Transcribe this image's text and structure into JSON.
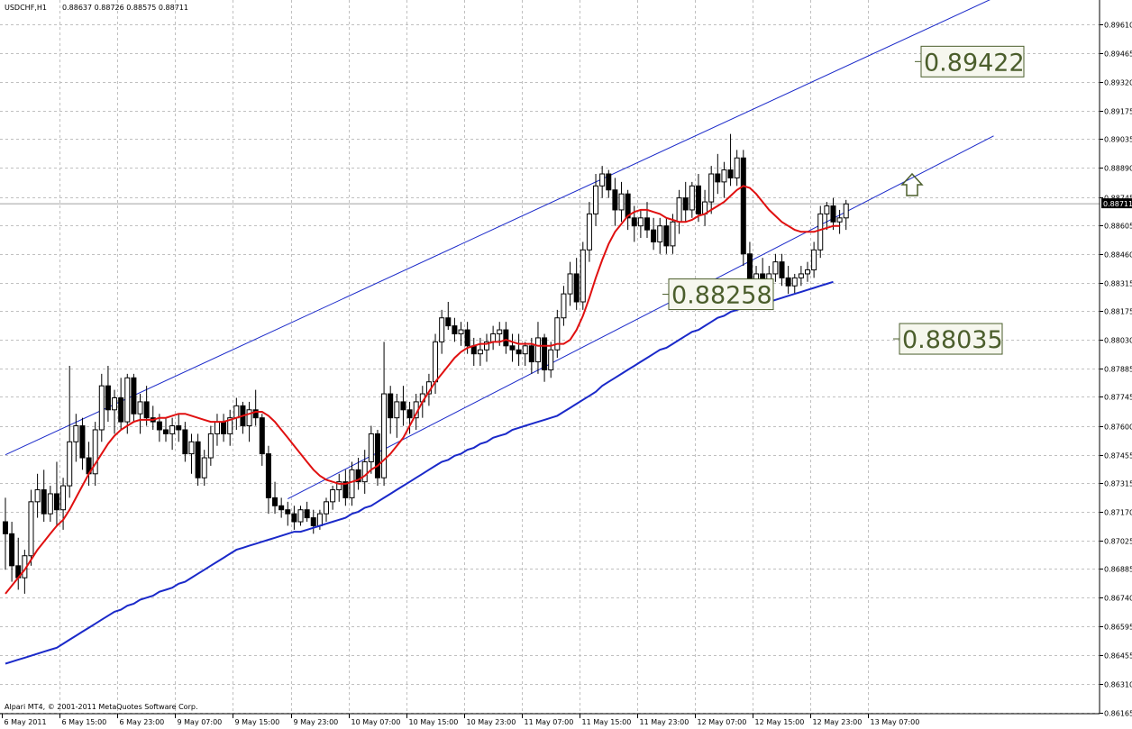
{
  "chart_data": {
    "type": "candlestick",
    "header": {
      "symbol": "USDCHF,H1",
      "ohlc": "0.88637 0.88726 0.88575 0.88711"
    },
    "footer": "Alpari MT4, © 2001-2011 MetaQuotes Software Corp.",
    "current_price": "0.88711",
    "ylim": [
      0.8616,
      0.8973
    ],
    "y_ticks": [
      "0.89610",
      "0.89465",
      "0.89320",
      "0.89175",
      "0.89035",
      "0.88890",
      "0.88745",
      "0.88605",
      "0.88460",
      "0.88315",
      "0.88175",
      "0.88030",
      "0.87885",
      "0.87745",
      "0.87600",
      "0.87455",
      "0.87315",
      "0.87170",
      "0.87025",
      "0.86885",
      "0.86740",
      "0.86595",
      "0.86455",
      "0.86310",
      "0.86165"
    ],
    "x_ticks": [
      "6 May 2011",
      "6 May 15:00",
      "6 May 23:00",
      "9 May 07:00",
      "9 May 15:00",
      "9 May 23:00",
      "10 May 07:00",
      "10 May 15:00",
      "10 May 23:00",
      "11 May 07:00",
      "11 May 15:00",
      "11 May 23:00",
      "12 May 07:00",
      "12 May 15:00",
      "12 May 23:00",
      "13 May 07:00"
    ],
    "candles": [
      {
        "o": 0.8712,
        "h": 0.8724,
        "l": 0.8688,
        "c": 0.8706
      },
      {
        "o": 0.8706,
        "h": 0.8712,
        "l": 0.8682,
        "c": 0.869
      },
      {
        "o": 0.869,
        "h": 0.8704,
        "l": 0.8678,
        "c": 0.8684
      },
      {
        "o": 0.8684,
        "h": 0.8698,
        "l": 0.8676,
        "c": 0.8695
      },
      {
        "o": 0.8695,
        "h": 0.8728,
        "l": 0.869,
        "c": 0.8722
      },
      {
        "o": 0.8722,
        "h": 0.8736,
        "l": 0.8714,
        "c": 0.8728
      },
      {
        "o": 0.8728,
        "h": 0.8738,
        "l": 0.8712,
        "c": 0.8716
      },
      {
        "o": 0.8716,
        "h": 0.873,
        "l": 0.8712,
        "c": 0.8726
      },
      {
        "o": 0.8726,
        "h": 0.8742,
        "l": 0.871,
        "c": 0.8718
      },
      {
        "o": 0.8718,
        "h": 0.8734,
        "l": 0.8708,
        "c": 0.873
      },
      {
        "o": 0.873,
        "h": 0.879,
        "l": 0.8724,
        "c": 0.8752
      },
      {
        "o": 0.8752,
        "h": 0.8766,
        "l": 0.8742,
        "c": 0.876
      },
      {
        "o": 0.876,
        "h": 0.8764,
        "l": 0.8738,
        "c": 0.8744
      },
      {
        "o": 0.8744,
        "h": 0.8752,
        "l": 0.873,
        "c": 0.8736
      },
      {
        "o": 0.8736,
        "h": 0.8762,
        "l": 0.873,
        "c": 0.8758
      },
      {
        "o": 0.8758,
        "h": 0.8786,
        "l": 0.8752,
        "c": 0.878
      },
      {
        "o": 0.878,
        "h": 0.879,
        "l": 0.8762,
        "c": 0.8768
      },
      {
        "o": 0.8768,
        "h": 0.8778,
        "l": 0.8756,
        "c": 0.8774
      },
      {
        "o": 0.8774,
        "h": 0.8784,
        "l": 0.8758,
        "c": 0.8762
      },
      {
        "o": 0.8762,
        "h": 0.8786,
        "l": 0.8756,
        "c": 0.8784
      },
      {
        "o": 0.8784,
        "h": 0.8786,
        "l": 0.8762,
        "c": 0.8766
      },
      {
        "o": 0.8766,
        "h": 0.8776,
        "l": 0.8756,
        "c": 0.8772
      },
      {
        "o": 0.8772,
        "h": 0.878,
        "l": 0.876,
        "c": 0.8764
      },
      {
        "o": 0.8764,
        "h": 0.877,
        "l": 0.8758,
        "c": 0.8762
      },
      {
        "o": 0.8762,
        "h": 0.8766,
        "l": 0.8752,
        "c": 0.8758
      },
      {
        "o": 0.8758,
        "h": 0.8764,
        "l": 0.8752,
        "c": 0.8756
      },
      {
        "o": 0.8756,
        "h": 0.8764,
        "l": 0.8748,
        "c": 0.876
      },
      {
        "o": 0.876,
        "h": 0.8766,
        "l": 0.8752,
        "c": 0.8758
      },
      {
        "o": 0.8758,
        "h": 0.8762,
        "l": 0.8742,
        "c": 0.8746
      },
      {
        "o": 0.8746,
        "h": 0.8756,
        "l": 0.8736,
        "c": 0.8752
      },
      {
        "o": 0.8752,
        "h": 0.8756,
        "l": 0.873,
        "c": 0.8734
      },
      {
        "o": 0.8734,
        "h": 0.8748,
        "l": 0.873,
        "c": 0.8744
      },
      {
        "o": 0.8744,
        "h": 0.876,
        "l": 0.874,
        "c": 0.8756
      },
      {
        "o": 0.8756,
        "h": 0.8766,
        "l": 0.875,
        "c": 0.8762
      },
      {
        "o": 0.8762,
        "h": 0.8766,
        "l": 0.8752,
        "c": 0.8756
      },
      {
        "o": 0.8756,
        "h": 0.8768,
        "l": 0.875,
        "c": 0.8764
      },
      {
        "o": 0.8764,
        "h": 0.8774,
        "l": 0.8758,
        "c": 0.877
      },
      {
        "o": 0.877,
        "h": 0.8772,
        "l": 0.8756,
        "c": 0.876
      },
      {
        "o": 0.876,
        "h": 0.8772,
        "l": 0.8752,
        "c": 0.8768
      },
      {
        "o": 0.8768,
        "h": 0.8778,
        "l": 0.876,
        "c": 0.8764
      },
      {
        "o": 0.8764,
        "h": 0.8766,
        "l": 0.874,
        "c": 0.8746
      },
      {
        "o": 0.8746,
        "h": 0.875,
        "l": 0.8716,
        "c": 0.8724
      },
      {
        "o": 0.8724,
        "h": 0.8732,
        "l": 0.8716,
        "c": 0.872
      },
      {
        "o": 0.872,
        "h": 0.8724,
        "l": 0.8714,
        "c": 0.8718
      },
      {
        "o": 0.8718,
        "h": 0.8722,
        "l": 0.871,
        "c": 0.8716
      },
      {
        "o": 0.8716,
        "h": 0.872,
        "l": 0.8708,
        "c": 0.8712
      },
      {
        "o": 0.8712,
        "h": 0.872,
        "l": 0.871,
        "c": 0.8718
      },
      {
        "o": 0.8718,
        "h": 0.8722,
        "l": 0.8712,
        "c": 0.8714
      },
      {
        "o": 0.8714,
        "h": 0.8718,
        "l": 0.8706,
        "c": 0.871
      },
      {
        "o": 0.871,
        "h": 0.8718,
        "l": 0.8708,
        "c": 0.8716
      },
      {
        "o": 0.8716,
        "h": 0.8724,
        "l": 0.8712,
        "c": 0.8722
      },
      {
        "o": 0.8722,
        "h": 0.873,
        "l": 0.8718,
        "c": 0.8728
      },
      {
        "o": 0.8728,
        "h": 0.8736,
        "l": 0.8722,
        "c": 0.8732
      },
      {
        "o": 0.8732,
        "h": 0.8738,
        "l": 0.872,
        "c": 0.8724
      },
      {
        "o": 0.8724,
        "h": 0.8742,
        "l": 0.872,
        "c": 0.8738
      },
      {
        "o": 0.8738,
        "h": 0.8744,
        "l": 0.8728,
        "c": 0.8732
      },
      {
        "o": 0.8732,
        "h": 0.8748,
        "l": 0.8726,
        "c": 0.8742
      },
      {
        "o": 0.8742,
        "h": 0.876,
        "l": 0.8736,
        "c": 0.8756
      },
      {
        "o": 0.8756,
        "h": 0.8758,
        "l": 0.873,
        "c": 0.8734
      },
      {
        "o": 0.8734,
        "h": 0.8802,
        "l": 0.873,
        "c": 0.8776
      },
      {
        "o": 0.8776,
        "h": 0.878,
        "l": 0.8756,
        "c": 0.8764
      },
      {
        "o": 0.8764,
        "h": 0.8776,
        "l": 0.8754,
        "c": 0.8772
      },
      {
        "o": 0.8772,
        "h": 0.878,
        "l": 0.876,
        "c": 0.8768
      },
      {
        "o": 0.8768,
        "h": 0.8772,
        "l": 0.8756,
        "c": 0.8764
      },
      {
        "o": 0.8764,
        "h": 0.8776,
        "l": 0.8758,
        "c": 0.8772
      },
      {
        "o": 0.8772,
        "h": 0.878,
        "l": 0.8764,
        "c": 0.8776
      },
      {
        "o": 0.8776,
        "h": 0.8786,
        "l": 0.877,
        "c": 0.8782
      },
      {
        "o": 0.8782,
        "h": 0.8806,
        "l": 0.8776,
        "c": 0.8802
      },
      {
        "o": 0.8802,
        "h": 0.8818,
        "l": 0.8796,
        "c": 0.8814
      },
      {
        "o": 0.8814,
        "h": 0.8822,
        "l": 0.8808,
        "c": 0.881
      },
      {
        "o": 0.881,
        "h": 0.8814,
        "l": 0.8802,
        "c": 0.8806
      },
      {
        "o": 0.8806,
        "h": 0.8812,
        "l": 0.88,
        "c": 0.8808
      },
      {
        "o": 0.8808,
        "h": 0.8812,
        "l": 0.8796,
        "c": 0.88
      },
      {
        "o": 0.88,
        "h": 0.8804,
        "l": 0.879,
        "c": 0.8796
      },
      {
        "o": 0.8796,
        "h": 0.8804,
        "l": 0.879,
        "c": 0.8798
      },
      {
        "o": 0.8798,
        "h": 0.8806,
        "l": 0.8792,
        "c": 0.8802
      },
      {
        "o": 0.8802,
        "h": 0.881,
        "l": 0.8798,
        "c": 0.8806
      },
      {
        "o": 0.8806,
        "h": 0.8812,
        "l": 0.88,
        "c": 0.8808
      },
      {
        "o": 0.8808,
        "h": 0.8812,
        "l": 0.8796,
        "c": 0.88
      },
      {
        "o": 0.88,
        "h": 0.8806,
        "l": 0.8792,
        "c": 0.8798
      },
      {
        "o": 0.8798,
        "h": 0.8806,
        "l": 0.879,
        "c": 0.8796
      },
      {
        "o": 0.8796,
        "h": 0.8802,
        "l": 0.879,
        "c": 0.88
      },
      {
        "o": 0.88,
        "h": 0.8804,
        "l": 0.8786,
        "c": 0.8792
      },
      {
        "o": 0.8792,
        "h": 0.8812,
        "l": 0.8786,
        "c": 0.8804
      },
      {
        "o": 0.8804,
        "h": 0.8806,
        "l": 0.8782,
        "c": 0.8788
      },
      {
        "o": 0.8788,
        "h": 0.8802,
        "l": 0.8784,
        "c": 0.8798
      },
      {
        "o": 0.8798,
        "h": 0.8818,
        "l": 0.8794,
        "c": 0.8814
      },
      {
        "o": 0.8814,
        "h": 0.883,
        "l": 0.881,
        "c": 0.8826
      },
      {
        "o": 0.8826,
        "h": 0.8842,
        "l": 0.882,
        "c": 0.8836
      },
      {
        "o": 0.8836,
        "h": 0.8844,
        "l": 0.8818,
        "c": 0.8822
      },
      {
        "o": 0.8822,
        "h": 0.8852,
        "l": 0.8818,
        "c": 0.8848
      },
      {
        "o": 0.8848,
        "h": 0.8872,
        "l": 0.8842,
        "c": 0.8866
      },
      {
        "o": 0.8866,
        "h": 0.8886,
        "l": 0.886,
        "c": 0.888
      },
      {
        "o": 0.888,
        "h": 0.889,
        "l": 0.8874,
        "c": 0.8886
      },
      {
        "o": 0.8886,
        "h": 0.8888,
        "l": 0.8874,
        "c": 0.8878
      },
      {
        "o": 0.8878,
        "h": 0.8884,
        "l": 0.886,
        "c": 0.8868
      },
      {
        "o": 0.8868,
        "h": 0.8882,
        "l": 0.8862,
        "c": 0.8876
      },
      {
        "o": 0.8876,
        "h": 0.8878,
        "l": 0.8858,
        "c": 0.8864
      },
      {
        "o": 0.8864,
        "h": 0.887,
        "l": 0.8852,
        "c": 0.886
      },
      {
        "o": 0.886,
        "h": 0.8868,
        "l": 0.8854,
        "c": 0.8864
      },
      {
        "o": 0.8864,
        "h": 0.8872,
        "l": 0.8854,
        "c": 0.8858
      },
      {
        "o": 0.8858,
        "h": 0.8864,
        "l": 0.8848,
        "c": 0.8852
      },
      {
        "o": 0.8852,
        "h": 0.8864,
        "l": 0.8846,
        "c": 0.886
      },
      {
        "o": 0.886,
        "h": 0.8864,
        "l": 0.8846,
        "c": 0.885
      },
      {
        "o": 0.885,
        "h": 0.8866,
        "l": 0.8846,
        "c": 0.8862
      },
      {
        "o": 0.8862,
        "h": 0.8878,
        "l": 0.8856,
        "c": 0.8874
      },
      {
        "o": 0.8874,
        "h": 0.8882,
        "l": 0.8862,
        "c": 0.8868
      },
      {
        "o": 0.8868,
        "h": 0.8882,
        "l": 0.8864,
        "c": 0.888
      },
      {
        "o": 0.888,
        "h": 0.8886,
        "l": 0.8862,
        "c": 0.8866
      },
      {
        "o": 0.8866,
        "h": 0.8878,
        "l": 0.886,
        "c": 0.8872
      },
      {
        "o": 0.8872,
        "h": 0.889,
        "l": 0.8866,
        "c": 0.8886
      },
      {
        "o": 0.8886,
        "h": 0.8896,
        "l": 0.8876,
        "c": 0.8882
      },
      {
        "o": 0.8882,
        "h": 0.8892,
        "l": 0.8874,
        "c": 0.8888
      },
      {
        "o": 0.8888,
        "h": 0.8906,
        "l": 0.888,
        "c": 0.8884
      },
      {
        "o": 0.8884,
        "h": 0.8898,
        "l": 0.888,
        "c": 0.8894
      },
      {
        "o": 0.8894,
        "h": 0.8898,
        "l": 0.884,
        "c": 0.8846
      },
      {
        "o": 0.8846,
        "h": 0.8852,
        "l": 0.8826,
        "c": 0.8832
      },
      {
        "o": 0.8832,
        "h": 0.884,
        "l": 0.8822,
        "c": 0.8836
      },
      {
        "o": 0.8836,
        "h": 0.8844,
        "l": 0.8824,
        "c": 0.8828
      },
      {
        "o": 0.8828,
        "h": 0.884,
        "l": 0.8824,
        "c": 0.8836
      },
      {
        "o": 0.8836,
        "h": 0.8846,
        "l": 0.8832,
        "c": 0.8842
      },
      {
        "o": 0.8842,
        "h": 0.8846,
        "l": 0.883,
        "c": 0.8834
      },
      {
        "o": 0.8834,
        "h": 0.884,
        "l": 0.8826,
        "c": 0.883
      },
      {
        "o": 0.883,
        "h": 0.8836,
        "l": 0.8826,
        "c": 0.8834
      },
      {
        "o": 0.8834,
        "h": 0.884,
        "l": 0.883,
        "c": 0.8836
      },
      {
        "o": 0.8836,
        "h": 0.8842,
        "l": 0.8832,
        "c": 0.8838
      },
      {
        "o": 0.8838,
        "h": 0.8852,
        "l": 0.8834,
        "c": 0.8848
      },
      {
        "o": 0.8848,
        "h": 0.887,
        "l": 0.8844,
        "c": 0.8866
      },
      {
        "o": 0.8866,
        "h": 0.8872,
        "l": 0.8858,
        "c": 0.887
      },
      {
        "o": 0.887,
        "h": 0.8874,
        "l": 0.8858,
        "c": 0.8862
      },
      {
        "o": 0.8862,
        "h": 0.8868,
        "l": 0.8856,
        "c": 0.8864
      },
      {
        "o": 0.8864,
        "h": 0.8873,
        "l": 0.8858,
        "c": 0.8871
      }
    ],
    "ma_red": [
      0.8676,
      0.868,
      0.8684,
      0.8688,
      0.8693,
      0.8698,
      0.8702,
      0.8706,
      0.871,
      0.8713,
      0.8718,
      0.8724,
      0.873,
      0.8736,
      0.8741,
      0.8746,
      0.8751,
      0.8755,
      0.8758,
      0.876,
      0.8762,
      0.8763,
      0.8763,
      0.8763,
      0.8764,
      0.8764,
      0.8765,
      0.8766,
      0.8766,
      0.8765,
      0.8764,
      0.8763,
      0.8762,
      0.8762,
      0.8762,
      0.8763,
      0.8764,
      0.8765,
      0.8766,
      0.8767,
      0.8767,
      0.8765,
      0.8762,
      0.8758,
      0.8754,
      0.875,
      0.8746,
      0.8742,
      0.8738,
      0.8735,
      0.8733,
      0.8732,
      0.8731,
      0.8731,
      0.8732,
      0.8733,
      0.8735,
      0.8738,
      0.874,
      0.8743,
      0.8746,
      0.875,
      0.8754,
      0.876,
      0.8766,
      0.8772,
      0.8777,
      0.8782,
      0.8786,
      0.879,
      0.8794,
      0.8797,
      0.8799,
      0.88,
      0.8801,
      0.8801,
      0.8802,
      0.8802,
      0.8803,
      0.8802,
      0.8801,
      0.8801,
      0.8801,
      0.88,
      0.88,
      0.88,
      0.8801,
      0.8801,
      0.8803,
      0.8808,
      0.8815,
      0.8824,
      0.8834,
      0.8843,
      0.8851,
      0.8857,
      0.8861,
      0.8865,
      0.8867,
      0.8868,
      0.8868,
      0.8867,
      0.8866,
      0.8864,
      0.8863,
      0.8862,
      0.8862,
      0.8863,
      0.8865,
      0.8866,
      0.8868,
      0.887,
      0.8872,
      0.8875,
      0.8878,
      0.888,
      0.8879,
      0.8876,
      0.8872,
      0.8868,
      0.8865,
      0.8862,
      0.886,
      0.8858,
      0.8857,
      0.8857,
      0.8857,
      0.8858,
      0.8859,
      0.886,
      0.886
    ],
    "ma_blue": [
      0.8641,
      0.8642,
      0.8643,
      0.8644,
      0.8645,
      0.8646,
      0.8647,
      0.8648,
      0.8649,
      0.8651,
      0.8653,
      0.8655,
      0.8657,
      0.8659,
      0.8661,
      0.8663,
      0.8665,
      0.8667,
      0.8668,
      0.867,
      0.8671,
      0.8673,
      0.8674,
      0.8675,
      0.8677,
      0.8678,
      0.8679,
      0.8681,
      0.8682,
      0.8684,
      0.8686,
      0.8688,
      0.869,
      0.8692,
      0.8694,
      0.8696,
      0.8698,
      0.8699,
      0.87,
      0.8701,
      0.8702,
      0.8703,
      0.8704,
      0.8705,
      0.8706,
      0.8707,
      0.8707,
      0.8708,
      0.8709,
      0.871,
      0.8711,
      0.8712,
      0.8713,
      0.8714,
      0.8716,
      0.8717,
      0.8719,
      0.872,
      0.8722,
      0.8724,
      0.8726,
      0.8728,
      0.873,
      0.8732,
      0.8734,
      0.8736,
      0.8738,
      0.874,
      0.8742,
      0.8743,
      0.8745,
      0.8746,
      0.8748,
      0.8749,
      0.8751,
      0.8752,
      0.8754,
      0.8755,
      0.8756,
      0.8758,
      0.8759,
      0.876,
      0.8761,
      0.8762,
      0.8763,
      0.8764,
      0.8765,
      0.8767,
      0.8769,
      0.8771,
      0.8773,
      0.8775,
      0.8777,
      0.878,
      0.8782,
      0.8784,
      0.8786,
      0.8788,
      0.879,
      0.8792,
      0.8794,
      0.8796,
      0.8798,
      0.8799,
      0.8801,
      0.8803,
      0.8805,
      0.8807,
      0.8808,
      0.881,
      0.8812,
      0.8814,
      0.8815,
      0.8817,
      0.8818,
      0.8819,
      0.882,
      0.8821,
      0.8821,
      0.8822,
      0.8823,
      0.8824,
      0.8825,
      0.8826,
      0.8827,
      0.8828,
      0.8829,
      0.883,
      0.8831,
      0.8832
    ],
    "channel": {
      "upper": {
        "from": [
          0,
          0.87455
        ],
        "to": [
          154,
          0.8974
        ]
      },
      "lower": {
        "from": [
          44,
          0.87235
        ],
        "to": [
          154,
          0.8905
        ]
      }
    },
    "annotations": [
      {
        "text": "0.89422",
        "price": 0.89422
      },
      {
        "text": "0.88258",
        "price": 0.88258
      },
      {
        "text": "0.88035",
        "price": 0.88035
      }
    ],
    "colors": {
      "bull_fill": "#ffffff",
      "bear_fill": "#000000",
      "ma_fast": "#e01010",
      "ma_slow": "#1a29c9",
      "channel": "#1a29c9",
      "grid": "#c0c0c0",
      "callout_border": "#4b5e2c",
      "callout_bg": "#f6f7ee",
      "arrow": "#4b5e2c"
    }
  }
}
